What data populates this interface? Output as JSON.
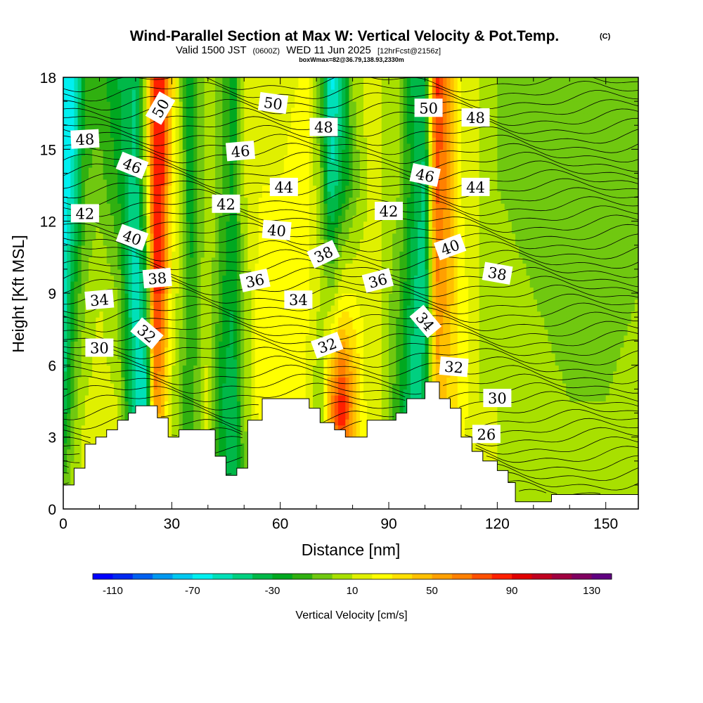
{
  "title": {
    "main": "Wind-Parallel Section at Max W: Vertical Velocity & Pot.Temp.",
    "copyright": "(C)",
    "valid_prefix": "Valid 1500 JST",
    "valid_utc": "(0600Z)",
    "valid_date": "WED 11 Jun 2025",
    "forecast": "[12hrFcst@2156z]",
    "box_info": "boxWmax=82@36.79,138.93,2330m"
  },
  "chart_data": {
    "type": "heatmap",
    "xlabel": "Distance [nm]",
    "ylabel": "Height [Kft MSL]",
    "xlim": [
      0,
      159
    ],
    "ylim": [
      0,
      18
    ],
    "x_ticks": [
      "0",
      "30",
      "60",
      "90",
      "120",
      "150"
    ],
    "y_ticks": [
      "0",
      "3",
      "6",
      "9",
      "12",
      "15",
      "18"
    ],
    "colorbar": {
      "label": "Vertical Velocity [cm/s]",
      "ticks": [
        "-110",
        "-70",
        "-30",
        "10",
        "50",
        "90",
        "130"
      ],
      "min": -120,
      "max": 140,
      "colors": [
        "#0000ff",
        "#0028f0",
        "#0060f0",
        "#0098f0",
        "#00c8f0",
        "#00f0f0",
        "#00e0b8",
        "#00d080",
        "#00b848",
        "#00a820",
        "#30b010",
        "#70c810",
        "#a8e000",
        "#e0f000",
        "#ffff00",
        "#ffe000",
        "#ffc000",
        "#ffa000",
        "#ff8000",
        "#ff5000",
        "#ff2000",
        "#e00000",
        "#c00020",
        "#a00040",
        "#800060",
        "#600080"
      ]
    },
    "vertical_velocity_columns": {
      "note": "vertical velocity [cm/s] per column, at 0, 4.5, 9, 13.5, 18 Kft",
      "x": [
        0,
        3,
        6,
        10,
        15,
        20,
        23,
        25,
        27,
        30,
        33,
        35,
        40,
        44,
        47,
        50,
        55,
        60,
        65,
        68,
        71,
        74,
        77,
        80,
        84,
        88,
        93,
        97,
        100,
        103,
        106,
        110,
        115,
        120,
        130,
        140,
        150,
        159
      ],
      "w": [
        [
          0,
          -40,
          -60,
          -70,
          -70
        ],
        [
          10,
          -5,
          -20,
          -55,
          -65
        ],
        [
          20,
          10,
          0,
          -10,
          -20
        ],
        [
          25,
          15,
          10,
          -5,
          -15
        ],
        [
          15,
          10,
          0,
          -20,
          -30
        ],
        [
          -20,
          -50,
          -60,
          -50,
          -40
        ],
        [
          -40,
          -60,
          -30,
          10,
          20
        ],
        [
          20,
          60,
          80,
          85,
          85
        ],
        [
          30,
          50,
          80,
          90,
          90
        ],
        [
          10,
          10,
          20,
          30,
          40
        ],
        [
          -10,
          -10,
          0,
          0,
          -10
        ],
        [
          -20,
          -20,
          -20,
          -30,
          -30
        ],
        [
          10,
          15,
          10,
          10,
          10
        ],
        [
          -20,
          -30,
          -20,
          -10,
          -10
        ],
        [
          -40,
          -40,
          -30,
          -25,
          -30
        ],
        [
          -10,
          0,
          0,
          10,
          10
        ],
        [
          20,
          30,
          30,
          20,
          20
        ],
        [
          10,
          20,
          20,
          20,
          10
        ],
        [
          15,
          30,
          30,
          30,
          20
        ],
        [
          10,
          15,
          20,
          20,
          20
        ],
        [
          -10,
          0,
          10,
          0,
          -10
        ],
        [
          30,
          60,
          0,
          -50,
          -65
        ],
        [
          70,
          90,
          20,
          -30,
          -45
        ],
        [
          40,
          55,
          20,
          -10,
          0
        ],
        [
          20,
          15,
          15,
          10,
          15
        ],
        [
          10,
          10,
          10,
          10,
          10
        ],
        [
          -20,
          -20,
          -10,
          0,
          0
        ],
        [
          -40,
          -50,
          -40,
          -30,
          -35
        ],
        [
          -20,
          -30,
          -50,
          -45,
          -30
        ],
        [
          20,
          45,
          60,
          75,
          85
        ],
        [
          30,
          40,
          50,
          60,
          65
        ],
        [
          20,
          25,
          25,
          20,
          15
        ],
        [
          10,
          10,
          10,
          10,
          10
        ],
        [
          10,
          10,
          5,
          0,
          0
        ],
        [
          5,
          5,
          0,
          -5,
          -5
        ],
        [
          5,
          0,
          -5,
          -5,
          -10
        ],
        [
          5,
          0,
          -5,
          -10,
          -10
        ],
        [
          10,
          5,
          0,
          -5,
          -5
        ]
      ]
    },
    "terrain": {
      "note": "surface height [Kft] step profile",
      "x": [
        0,
        3,
        6,
        9,
        12,
        15,
        18,
        20,
        26,
        29,
        32,
        36,
        42,
        45,
        48,
        51,
        55,
        60,
        63,
        68,
        71,
        75,
        78,
        81,
        84,
        88,
        92,
        95,
        100,
        104,
        107,
        110,
        113,
        116,
        120,
        123,
        125,
        130,
        135,
        159
      ],
      "h": [
        1,
        1.7,
        2.7,
        3,
        3.3,
        3.7,
        4,
        4.3,
        3.8,
        3,
        3.3,
        3.3,
        2.2,
        1.4,
        1.7,
        3.7,
        4.6,
        4.6,
        4.6,
        4.2,
        3.6,
        3.3,
        3,
        3,
        3.7,
        3.7,
        4,
        4.6,
        5.3,
        4.6,
        4.2,
        3,
        2.4,
        2,
        1.6,
        1.1,
        0.3,
        0.3,
        0.6,
        0.6
      ]
    },
    "potential_temperature_contours": {
      "note": "isentrope labels [°C] with their positions in data units (x nm, y Kft)",
      "labels": [
        {
          "text": "50",
          "x": 27,
          "y": 16.7,
          "angle": -60
        },
        {
          "text": "50",
          "x": 58,
          "y": 16.9,
          "angle": 8
        },
        {
          "text": "50",
          "x": 101,
          "y": 16.7,
          "angle": 0
        },
        {
          "text": "48",
          "x": 6,
          "y": 15.4,
          "angle": -3
        },
        {
          "text": "48",
          "x": 72,
          "y": 15.9,
          "angle": 0
        },
        {
          "text": "48",
          "x": 114,
          "y": 16.3,
          "angle": 0
        },
        {
          "text": "46",
          "x": 19,
          "y": 14.3,
          "angle": 22
        },
        {
          "text": "46",
          "x": 49,
          "y": 14.9,
          "angle": -5
        },
        {
          "text": "46",
          "x": 100,
          "y": 13.9,
          "angle": 12
        },
        {
          "text": "44",
          "x": 61,
          "y": 13.4,
          "angle": 0
        },
        {
          "text": "44",
          "x": 114,
          "y": 13.4,
          "angle": 0
        },
        {
          "text": "42",
          "x": 6,
          "y": 12.3,
          "angle": 0
        },
        {
          "text": "42",
          "x": 45,
          "y": 12.7,
          "angle": 0
        },
        {
          "text": "42",
          "x": 90,
          "y": 12.4,
          "angle": 0
        },
        {
          "text": "40",
          "x": 19,
          "y": 11.3,
          "angle": 20
        },
        {
          "text": "40",
          "x": 59,
          "y": 11.6,
          "angle": 5
        },
        {
          "text": "40",
          "x": 107,
          "y": 10.9,
          "angle": -20
        },
        {
          "text": "38",
          "x": 26,
          "y": 9.6,
          "angle": -5
        },
        {
          "text": "38",
          "x": 72,
          "y": 10.6,
          "angle": -25
        },
        {
          "text": "38",
          "x": 120,
          "y": 9.8,
          "angle": 10
        },
        {
          "text": "36",
          "x": 53,
          "y": 9.5,
          "angle": -12
        },
        {
          "text": "36",
          "x": 87,
          "y": 9.5,
          "angle": -15
        },
        {
          "text": "34",
          "x": 10,
          "y": 8.7,
          "angle": -5
        },
        {
          "text": "34",
          "x": 65,
          "y": 8.7,
          "angle": 0
        },
        {
          "text": "34",
          "x": 100,
          "y": 7.8,
          "angle": 50
        },
        {
          "text": "32",
          "x": 23,
          "y": 7.3,
          "angle": 40
        },
        {
          "text": "32",
          "x": 73,
          "y": 6.8,
          "angle": -20
        },
        {
          "text": "32",
          "x": 108,
          "y": 5.9,
          "angle": 5
        },
        {
          "text": "30",
          "x": 10,
          "y": 6.7,
          "angle": 0
        },
        {
          "text": "30",
          "x": 120,
          "y": 4.6,
          "angle": 0
        },
        {
          "text": "26",
          "x": 117,
          "y": 3.1,
          "angle": 0
        }
      ]
    }
  }
}
